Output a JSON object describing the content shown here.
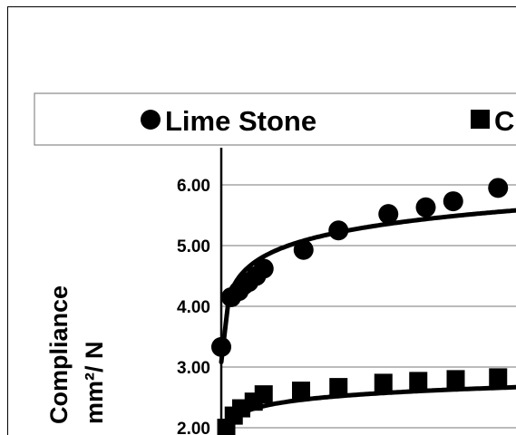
{
  "chart_data": {
    "type": "scatter",
    "ylabel_line1": "Compliance",
    "ylabel_line2": "mm²/ N",
    "ylim": [
      1.8,
      6.6
    ],
    "y_ticks": [
      "2.00",
      "3.00",
      "4.00",
      "5.00",
      "6.00"
    ],
    "grid": true,
    "legend_position": "top",
    "series": [
      {
        "name": "Lime Stone",
        "marker": "circle",
        "color": "#000000",
        "points": [
          {
            "x": 0.0,
            "y": 3.33
          },
          {
            "x": 0.4,
            "y": 4.15
          },
          {
            "x": 0.7,
            "y": 4.25
          },
          {
            "x": 0.9,
            "y": 4.35
          },
          {
            "x": 1.1,
            "y": 4.4
          },
          {
            "x": 1.4,
            "y": 4.5
          },
          {
            "x": 1.7,
            "y": 4.62
          },
          {
            "x": 3.3,
            "y": 4.93
          },
          {
            "x": 4.7,
            "y": 5.25
          },
          {
            "x": 6.7,
            "y": 5.52
          },
          {
            "x": 8.2,
            "y": 5.63
          },
          {
            "x": 9.3,
            "y": 5.73
          },
          {
            "x": 11.1,
            "y": 5.95
          }
        ]
      },
      {
        "name": "C",
        "marker": "square",
        "color": "#000000",
        "points": [
          {
            "x": 0.2,
            "y": 2.0
          },
          {
            "x": 0.5,
            "y": 2.2
          },
          {
            "x": 0.8,
            "y": 2.32
          },
          {
            "x": 1.3,
            "y": 2.43
          },
          {
            "x": 1.7,
            "y": 2.55
          },
          {
            "x": 3.2,
            "y": 2.61
          },
          {
            "x": 4.7,
            "y": 2.67
          },
          {
            "x": 6.5,
            "y": 2.74
          },
          {
            "x": 7.9,
            "y": 2.77
          },
          {
            "x": 9.4,
            "y": 2.8
          },
          {
            "x": 11.1,
            "y": 2.83
          }
        ]
      }
    ],
    "trendlines": [
      {
        "series": "Lime Stone",
        "x_start": 0.0,
        "y_start": 3.08,
        "y_anchor": 4.14,
        "slope": 0.392
      },
      {
        "series": "C",
        "x_start": 0.1,
        "y_start": 1.86,
        "y_anchor": 2.08,
        "slope": 0.16
      }
    ],
    "x_visible_max": 12.5
  }
}
